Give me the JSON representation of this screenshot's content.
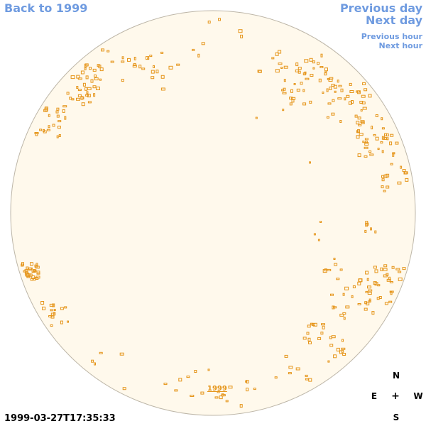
{
  "nav": {
    "back": "Back to 1999",
    "previous_day": "Previous day",
    "next_day": "Next day",
    "previous_hour": "Previous hour",
    "next_hour": "Next hour"
  },
  "disk": {
    "fill": "#fff9ec",
    "stroke": "#bdb6a8",
    "region_color": "#e5951a",
    "year_label": "1999"
  },
  "timestamp": "1999-03-27T17:35:33",
  "compass": {
    "north": "N",
    "east": "E",
    "center": "+",
    "west": "W",
    "south": "S"
  },
  "colors": {
    "link": "#6f9be0",
    "accent": "#e5951a"
  }
}
